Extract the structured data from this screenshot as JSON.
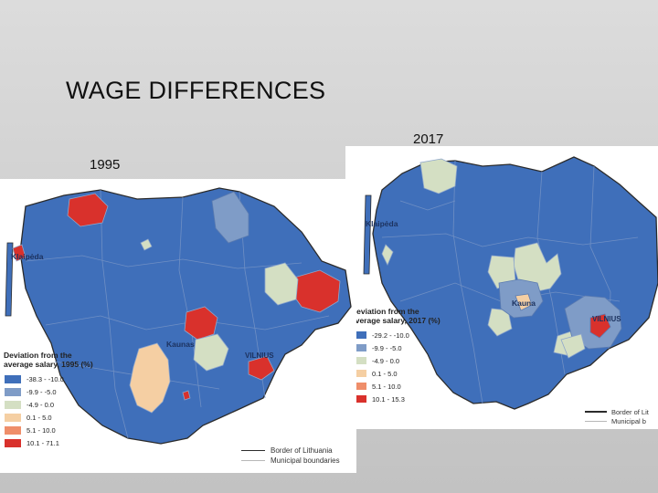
{
  "slide": {
    "title": "WAGE DIFFERENCES"
  },
  "colors": {
    "band1": "#3f6fba",
    "band2": "#7f9cc7",
    "band3": "#d4dfc3",
    "band4": "#f5cfa3",
    "band5": "#ef8e6a",
    "band6": "#d9312c",
    "water": "#ffffff",
    "border_line": "#2b2b2b",
    "municipal_line": "#b8b8b8"
  },
  "map_1995": {
    "year_label": "1995",
    "cities": {
      "klaipeda": "Klaipėda",
      "kaunas": "Kaunas",
      "vilnius": "VILNIUS"
    },
    "legend": {
      "title_line1": "Deviation from the",
      "title_line2": "average salary, 1995 (%)",
      "items": [
        {
          "label": "-38.3 - -10.0",
          "color": "#3f6fba"
        },
        {
          "label": "-9.9 - -5.0",
          "color": "#7f9cc7"
        },
        {
          "label": "-4.9 - 0.0",
          "color": "#d4dfc3"
        },
        {
          "label": "0.1 - 5.0",
          "color": "#f5cfa3"
        },
        {
          "label": "5.1 - 10.0",
          "color": "#ef8e6a"
        },
        {
          "label": "10.1 - 71.1",
          "color": "#d9312c"
        }
      ]
    },
    "boundaries": {
      "border": "Border of Lithuania",
      "municipal": "Municipal boundaries"
    }
  },
  "map_2017": {
    "year_label": "2017",
    "cities": {
      "klaipeda": "Klaipėda",
      "kaunas": "Kauna",
      "vilnius": "VILNIUS"
    },
    "legend": {
      "title_line1": "Deviation from the",
      "title_line2": "average salary, 2017 (%)",
      "items": [
        {
          "label": "-29.2 - -10.0",
          "color": "#3f6fba"
        },
        {
          "label": "-9.9 - -5.0",
          "color": "#7f9cc7"
        },
        {
          "label": "-4.9 - 0.0",
          "color": "#d4dfc3"
        },
        {
          "label": "0.1 - 5.0",
          "color": "#f5cfa3"
        },
        {
          "label": "5.1 - 10.0",
          "color": "#ef8e6a"
        },
        {
          "label": "10.1 - 15.3",
          "color": "#d9312c"
        }
      ]
    },
    "boundaries": {
      "border": "Border of Lit",
      "municipal": "Municipal b"
    }
  }
}
